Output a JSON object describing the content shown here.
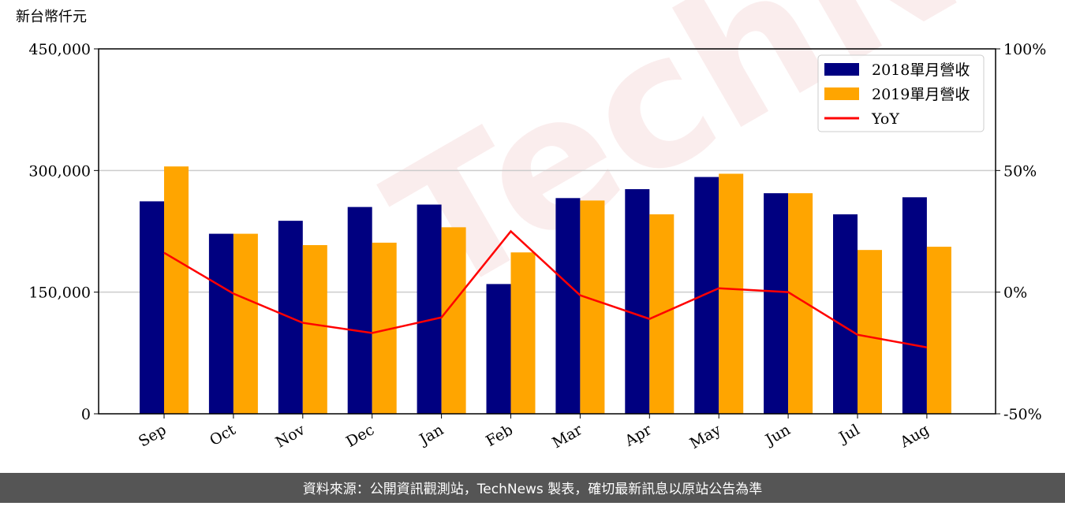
{
  "chart_data": {
    "type": "bar_line",
    "y_label": "新台幣仟元",
    "watermark": "TechNews",
    "footer": "資料來源：公開資訊觀測站，TechNews 製表，確切最新訊息以原站公告為準",
    "categories": [
      "Sep",
      "Oct",
      "Nov",
      "Dec",
      "Jan",
      "Feb",
      "Mar",
      "Apr",
      "May",
      "Jun",
      "Jul",
      "Aug"
    ],
    "series": [
      {
        "name": "2018單月營收",
        "color": "#000080",
        "values": [
          262000,
          222000,
          238000,
          255000,
          258000,
          160000,
          266000,
          277000,
          292000,
          272000,
          246000,
          267000
        ]
      },
      {
        "name": "2019單月營收",
        "color": "#ffa500",
        "values": [
          305000,
          222000,
          208000,
          211000,
          230000,
          199000,
          263000,
          246000,
          296000,
          272000,
          202000,
          206000
        ]
      },
      {
        "name": "YoY",
        "color": "#ff0000",
        "axis": "y2",
        "values": [
          16.2,
          -0.6,
          -12.6,
          -16.8,
          -10.4,
          25.0,
          -1.3,
          -11.0,
          1.6,
          0.0,
          -17.5,
          -22.7
        ]
      }
    ],
    "ylim": [
      0,
      450000
    ],
    "yticks": [
      0,
      {
        "value": 150000,
        "label": "150,000"
      },
      {
        "value": 300000,
        "label": "300,000"
      },
      {
        "value": 450000,
        "label": "450,000"
      }
    ],
    "y2lim": [
      -50,
      100
    ],
    "y2ticks": [
      {
        "value": -50,
        "label": "-50%"
      },
      {
        "value": 0,
        "label": "0%"
      },
      {
        "value": 50,
        "label": "50%"
      },
      {
        "value": 100,
        "label": "100%"
      }
    ],
    "grid": true,
    "legend": "upper right"
  }
}
